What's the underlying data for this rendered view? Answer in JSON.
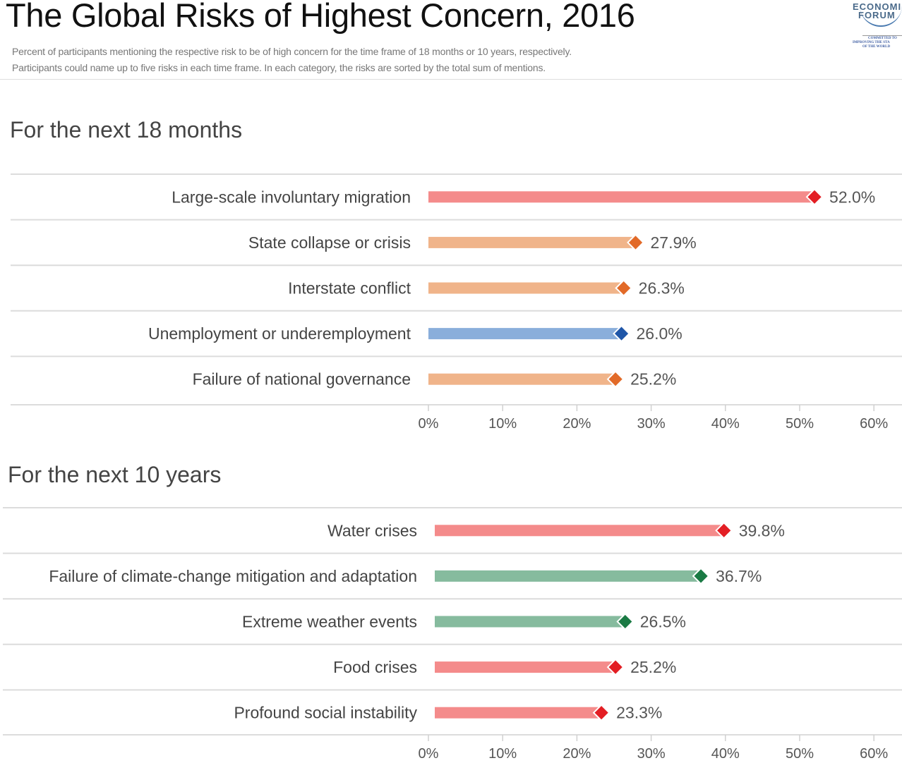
{
  "header": {
    "title": "The Global Risks of Highest Concern, 2016",
    "subtitle_line1": "Percent of participants mentioning the respective risk to be of high concern for the time frame of 18 months or 10 years, respectively.",
    "subtitle_line2": "Participants could name up to five risks in each time frame. In each category, the risks are sorted by the total sum of mentions.",
    "logo": {
      "icon": "world-economic-forum-logo-icon",
      "line1": "ECONOMI",
      "line2": "FORUM",
      "tag1": "COMMITTED TO",
      "tag2": "IMPROVING THE STA",
      "tag3": "OF THE WORLD"
    }
  },
  "chart_data": [
    {
      "type": "bar",
      "orientation": "horizontal",
      "title": "For the next 18 months",
      "xlabel": "",
      "ylabel": "",
      "xlim": [
        0,
        60
      ],
      "x_ticks": [
        "0%",
        "10%",
        "20%",
        "30%",
        "40%",
        "50%",
        "60%"
      ],
      "categories": [
        "Large-scale involuntary migration",
        "State collapse or crisis",
        "Interstate conflict",
        "Unemployment or underemployment",
        "Failure of national governance"
      ],
      "values": [
        52.0,
        27.9,
        26.3,
        26.0,
        25.2
      ],
      "labels": [
        "52.0%",
        "27.9%",
        "26.3%",
        "26.0%",
        "25.2%"
      ],
      "bar_colors": [
        "#f48b8b",
        "#f0b48a",
        "#f0b48a",
        "#8aaedb",
        "#f0b48a"
      ],
      "marker_colors": [
        "#e31e24",
        "#e26a28",
        "#e26a28",
        "#1f56a8",
        "#e26a28"
      ],
      "marker": "diamond",
      "grid": false,
      "legend": "none"
    },
    {
      "type": "bar",
      "orientation": "horizontal",
      "title": "For the next 10 years",
      "xlabel": "",
      "ylabel": "",
      "xlim": [
        0,
        60
      ],
      "x_ticks": [
        "0%",
        "10%",
        "20%",
        "30%",
        "40%",
        "50%",
        "60%"
      ],
      "categories": [
        "Water crises",
        "Failure of climate-change mitigation and adaptation",
        "Extreme weather events",
        "Food crises",
        "Profound social instability"
      ],
      "values": [
        39.8,
        36.7,
        26.5,
        25.2,
        23.3
      ],
      "labels": [
        "39.8%",
        "36.7%",
        "26.5%",
        "25.2%",
        "23.3%"
      ],
      "bar_colors": [
        "#f48b8b",
        "#86bb9e",
        "#86bb9e",
        "#f48b8b",
        "#f48b8b"
      ],
      "marker_colors": [
        "#e31e24",
        "#1a7a44",
        "#1a7a44",
        "#e31e24",
        "#e31e24"
      ],
      "marker": "diamond",
      "grid": false,
      "legend": "none"
    }
  ]
}
